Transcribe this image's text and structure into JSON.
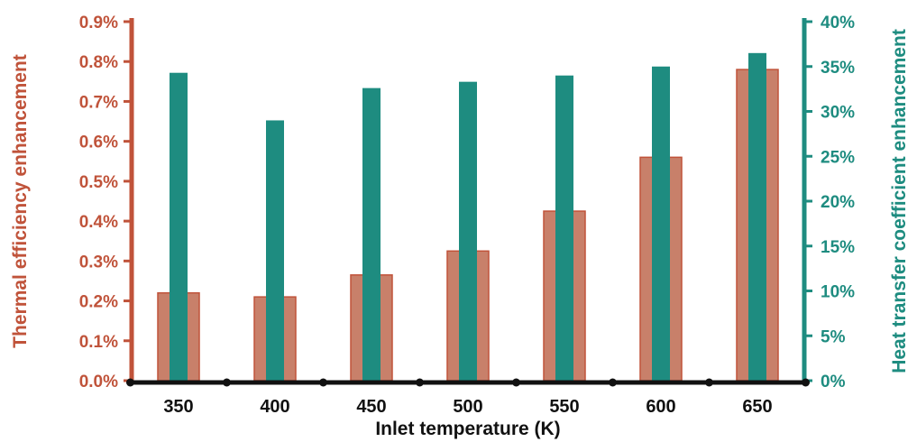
{
  "chart_data": {
    "type": "bar",
    "xlabel": "Inlet temperature (K)",
    "ylabel": "Thermal efficiency enhancement",
    "y2label": "Heat transfer coefficient enhancement",
    "categories": [
      "350",
      "400",
      "450",
      "500",
      "550",
      "600",
      "650"
    ],
    "series": [
      {
        "name": "Thermal efficiency enhancement",
        "axis": "left",
        "unit": "%",
        "values": [
          0.22,
          0.21,
          0.265,
          0.325,
          0.425,
          0.56,
          0.78
        ]
      },
      {
        "name": "Heat transfer coefficient enhancement",
        "axis": "right",
        "unit": "%",
        "values": [
          34.3,
          29.0,
          32.6,
          33.3,
          34.0,
          35.0,
          36.5
        ]
      }
    ],
    "ylim": [
      0,
      0.9
    ],
    "y2lim": [
      0,
      40
    ],
    "yticks": [
      "0.0%",
      "0.1%",
      "0.2%",
      "0.3%",
      "0.4%",
      "0.5%",
      "0.6%",
      "0.7%",
      "0.8%",
      "0.9%"
    ],
    "y2ticks": [
      "0%",
      "5%",
      "10%",
      "15%",
      "20%",
      "25%",
      "30%",
      "35%",
      "40%"
    ],
    "grid": false,
    "legend": "none",
    "colors": {
      "left_axis": "#c0533a",
      "left_bar_fill": "#c8806a",
      "right_axis": "#1e8c80",
      "right_bar_fill": "#1e8c80",
      "x_axis": "#111111"
    }
  }
}
